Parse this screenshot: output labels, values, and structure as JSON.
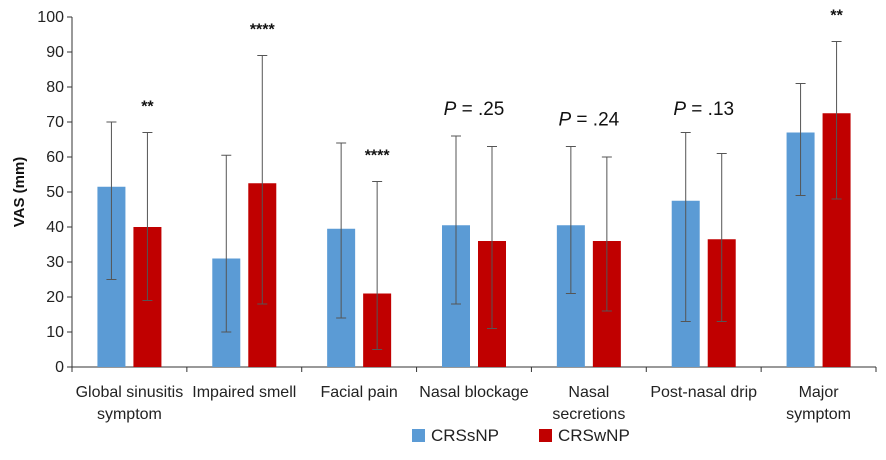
{
  "chart_data": {
    "type": "bar",
    "ylabel": "VAS (mm)",
    "xlabel": "",
    "title": "",
    "ylim": [
      0,
      100
    ],
    "yticks": [
      0,
      10,
      20,
      30,
      40,
      50,
      60,
      70,
      80,
      90,
      100
    ],
    "grid": false,
    "legend_position": "bottom",
    "categories": [
      [
        "Global sinusitis",
        "symptom"
      ],
      [
        "Impaired smell"
      ],
      [
        "Facial pain"
      ],
      [
        "Nasal blockage"
      ],
      [
        "Nasal",
        "secretions"
      ],
      [
        "Post-nasal drip"
      ],
      [
        "Major",
        "symptom"
      ]
    ],
    "series": [
      {
        "name": "CRSsNP",
        "color": "#5b9bd5",
        "values": [
          51.5,
          31,
          39.5,
          40.5,
          40.5,
          47.5,
          67
        ],
        "error_low": [
          25,
          10,
          14,
          18,
          21,
          13,
          49
        ],
        "error_high": [
          70,
          60.5,
          64,
          66,
          63,
          67,
          81
        ]
      },
      {
        "name": "CRSwNP",
        "color": "#c00000",
        "values": [
          40,
          52.5,
          21,
          36,
          36,
          36.5,
          72.5
        ],
        "error_low": [
          19,
          18,
          5,
          11,
          16,
          13,
          48
        ],
        "error_high": [
          67,
          89,
          53,
          63,
          60,
          61,
          93
        ]
      }
    ],
    "annotations": [
      {
        "category_index": 0,
        "text": "**",
        "kind": "stars",
        "y": 73
      },
      {
        "category_index": 1,
        "text": "****",
        "kind": "stars",
        "y": 95
      },
      {
        "category_index": 2,
        "text": "****",
        "kind": "stars",
        "y": 59
      },
      {
        "category_index": 3,
        "p_label": "P",
        "text": " = .25",
        "kind": "p",
        "y": 72
      },
      {
        "category_index": 4,
        "p_label": "P",
        "text": " = .24",
        "kind": "p",
        "y": 69
      },
      {
        "category_index": 5,
        "p_label": "P",
        "text": " = .13",
        "kind": "p",
        "y": 72
      },
      {
        "category_index": 6,
        "text": "**",
        "kind": "stars",
        "y": 99
      }
    ]
  }
}
